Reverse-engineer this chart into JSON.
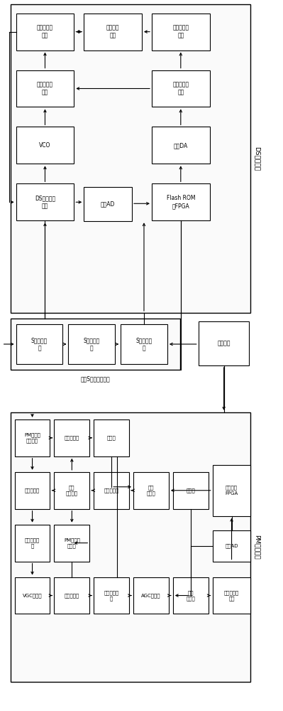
{
  "fig_width": 3.99,
  "fig_height": 10.0,
  "bg_color": "#ffffff",
  "ds_label": "DS接收通道",
  "pm_label": "PM接收通道",
  "shared_label": "公用S频段射频前端",
  "blocks": {
    "ds_2nd_synth": {
      "label": "第二频率综\n合器",
      "col": 0,
      "row": 0
    },
    "ds_2nd_vco": {
      "label": "第二压控\n滤波",
      "col": 1,
      "row": 0
    },
    "ds_2nd_loop": {
      "label": "第二环路滤\n波器",
      "col": 2,
      "row": 0
    },
    "ds_1st_loop": {
      "label": "第一环路滤\n波器",
      "col": 0,
      "row": 1
    },
    "ds_1st_synth": {
      "label": "第一频率综\n合器",
      "col": 2,
      "row": 1
    },
    "vco": {
      "label": "VCO",
      "col": 0,
      "row": 2
    },
    "high_da": {
      "label": "高速DA",
      "col": 2,
      "row": 2
    },
    "ds_channel": {
      "label": "DS通道混频\n单元",
      "col": 0,
      "row": 3
    },
    "high_ad": {
      "label": "高速AD",
      "col": 1,
      "row": 3
    },
    "flash_fpga": {
      "label": "Flash ROM\n型FPGA",
      "col": 2,
      "row": 3
    }
  },
  "shared_blocks": {
    "s_presel": {
      "label": "S频段预选\n器",
      "col": 0
    },
    "s_lna": {
      "label": "S频段低噪\n放",
      "col": 1
    },
    "s_divider": {
      "label": "S频段功分\n器",
      "col": 2
    }
  },
  "power_label": "电源部分",
  "pm_blocks": {
    "pm_filter": {
      "label": "PM通道选\n择滤波器",
      "col": 0,
      "row": 0
    },
    "iso_amp": {
      "label": "隔离放大器",
      "col": 1,
      "row": 0
    },
    "freq_div": {
      "label": "分频器",
      "col": 2,
      "row": 0
    },
    "pm_1mixer": {
      "label": "第一混频器",
      "col": 0,
      "row": 1
    },
    "pm_1vco": {
      "label": "第一\n压控晶振",
      "col": 1,
      "row": 1
    },
    "loop_filt": {
      "label": "环路滤波器",
      "col": 2,
      "row": 1
    },
    "pm_1phase": {
      "label": "第一\n鉴相器",
      "col": 3,
      "row": 1
    },
    "phase_shift": {
      "label": "移相器",
      "col": 4,
      "row": 1
    },
    "af_fpga": {
      "label": "反熔丝型\nFPGA",
      "col": 5,
      "row": 1
    },
    "pm_iffilter": {
      "label": "一中频滤波\n器",
      "col": 0,
      "row": 2
    },
    "pm_losc": {
      "label": "PM通道本\n振单元",
      "col": 1,
      "row": 2
    },
    "low_ad": {
      "label": "低速AD",
      "col": 5,
      "row": 2
    },
    "vgc_amp": {
      "label": "VGC放大器",
      "col": 0,
      "row": 3
    },
    "pm_2mixer": {
      "label": "第二混频器",
      "col": 1,
      "row": 3
    },
    "pm_2iffilter": {
      "label": "三中频滤波\n器",
      "col": 2,
      "row": 3
    },
    "agc_amp": {
      "label": "AGC放大器",
      "col": 3,
      "row": 3
    },
    "pm_2phase": {
      "label": "第二\n鉴相器",
      "col": 4,
      "row": 3
    },
    "pm_ifdemod": {
      "label": "中频解调滤\n波器",
      "col": 5,
      "row": 3
    }
  }
}
